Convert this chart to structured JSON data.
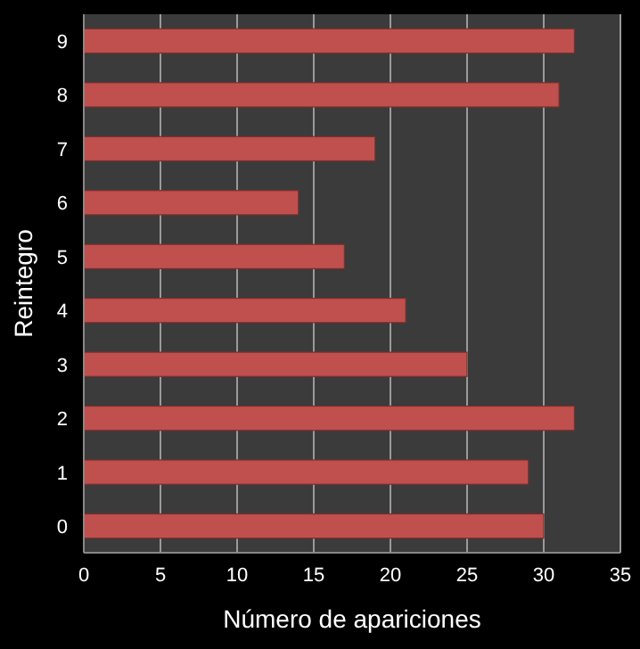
{
  "chart_data": {
    "type": "bar",
    "orientation": "horizontal",
    "xlabel": "Número de apariciones",
    "ylabel": "Reintegro",
    "categories": [
      "9",
      "8",
      "7",
      "6",
      "5",
      "4",
      "3",
      "2",
      "1",
      "0"
    ],
    "values": [
      32,
      31,
      19,
      14,
      17,
      21,
      25,
      32,
      29,
      30
    ],
    "color": "#c0504d",
    "xlim": [
      0,
      35
    ],
    "xticks": [
      0,
      5,
      10,
      15,
      20,
      25,
      30,
      35
    ],
    "grid": "x"
  }
}
